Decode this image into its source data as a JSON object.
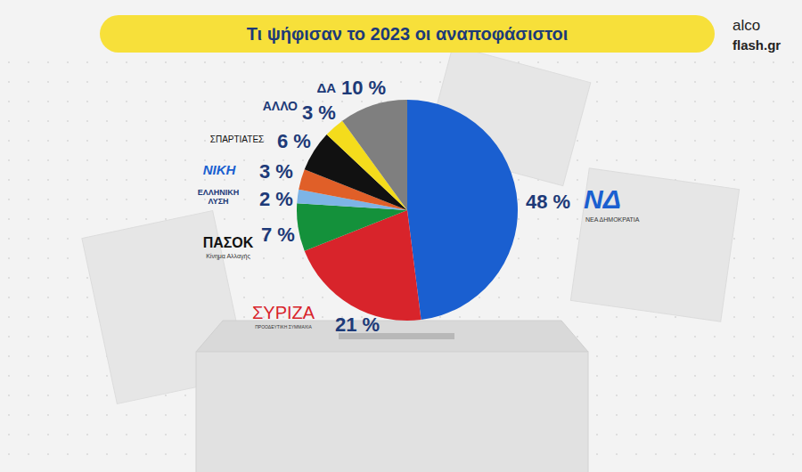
{
  "chart_data": {
    "type": "pie",
    "title": "Τι ψήφισαν το 2023 οι αναποφάσιστοι",
    "source_lines": [
      "alco",
      "flash.gr"
    ],
    "categories": [
      "ΝΔ",
      "ΣΥΡΙΖΑ",
      "ΠΑΣΟΚ",
      "ΕΛΛΗΝΙΚΗ ΛΥΣΗ",
      "ΝΙΚΗ",
      "ΣΠΑΡΤΙΑΤΕΣ",
      "ΑΛΛΟ",
      "ΔΑ"
    ],
    "category_subtitles": [
      "ΝΕΑ ΔΗΜΟΚΡΑΤΙΑ",
      "ΠΡΟΟΔΕΥΤΙΚΗ ΣΥΜΜΑΧΙΑ",
      "Κίνημα Αλλαγής",
      null,
      null,
      null,
      null,
      null
    ],
    "values": [
      48,
      21,
      7,
      2,
      3,
      6,
      3,
      10
    ],
    "value_labels": [
      "48 %",
      "21 %",
      "7 %",
      "2 %",
      "3 %",
      "6 %",
      "3 %",
      "10 %"
    ],
    "colors": [
      "#1a5fd0",
      "#d8242b",
      "#14913b",
      "#7db4e6",
      "#e05f28",
      "#111111",
      "#f4dc1c",
      "#7f7f7f"
    ],
    "data_labels": true
  }
}
